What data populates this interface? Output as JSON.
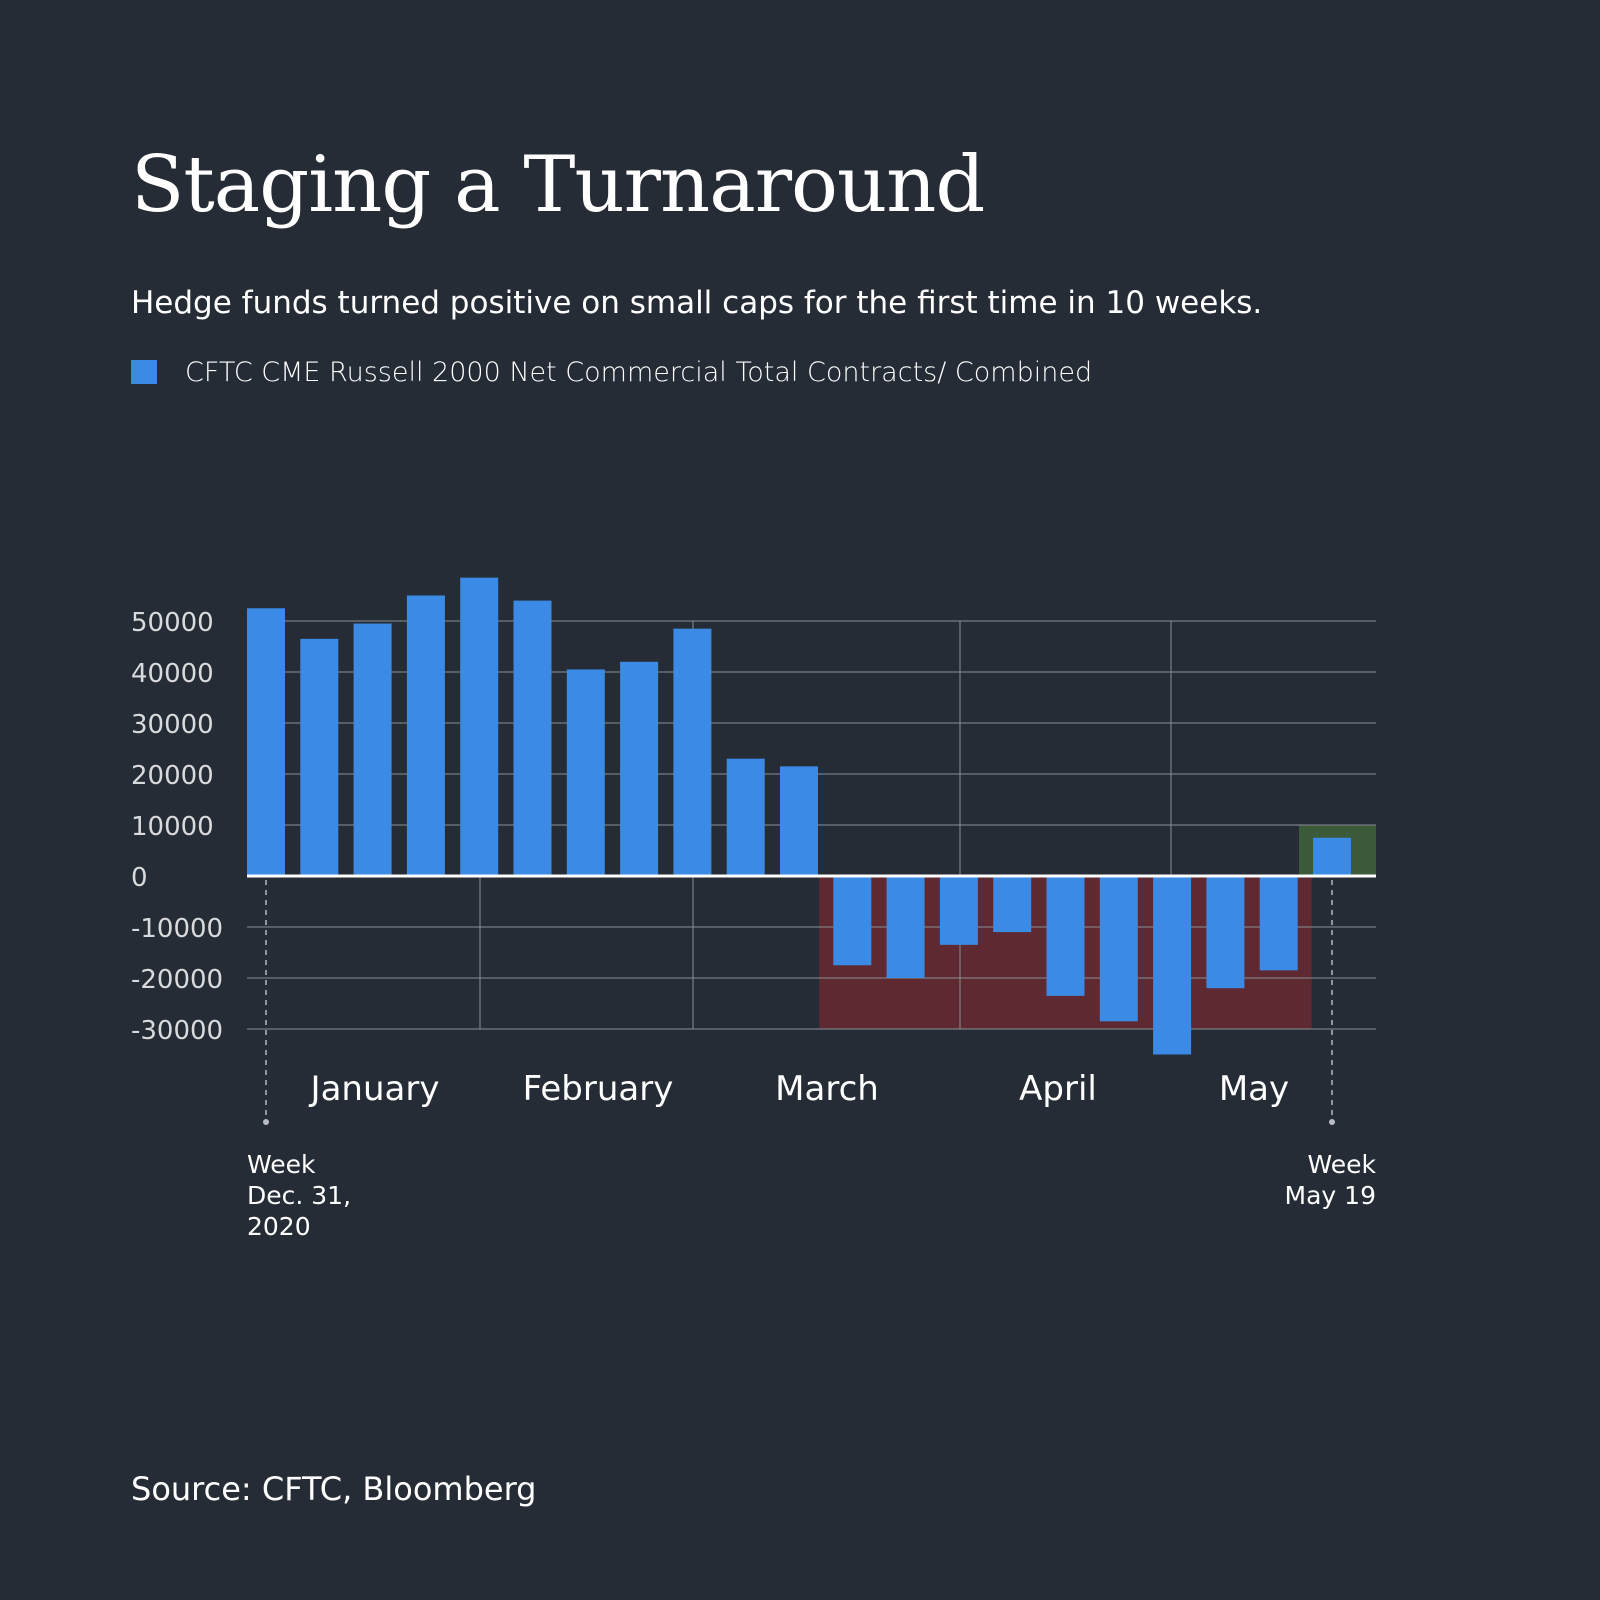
{
  "title": "Staging a Turnaround",
  "subtitle": "Hedge funds turned positive on small caps for the first time in 10 weeks.",
  "legend": {
    "label": "CFTC CME Russell 2000 Net Commercial Total Contracts/ Combined",
    "color": "#3b8ae6"
  },
  "source": "Source: CFTC, Bloomberg",
  "colors": {
    "background": "#262c35",
    "bar": "#3b8ae6",
    "negative_region": "#5e2930",
    "positive_region": "#3b5a3a",
    "grid": "#8a8f96"
  },
  "chart_data": {
    "type": "bar",
    "series": [
      {
        "name": "CFTC CME Russell 2000 Net Commercial Total Contracts/ Combined",
        "values": [
          52500,
          46500,
          49500,
          55000,
          58500,
          54000,
          40500,
          42000,
          48500,
          23000,
          21500,
          -17500,
          -20000,
          -13500,
          -11000,
          -23500,
          -28500,
          -35000,
          -22000,
          -18500,
          7500
        ]
      }
    ],
    "y_ticks": [
      50000,
      40000,
      30000,
      20000,
      10000,
      0,
      -10000,
      -20000,
      -30000
    ],
    "y_tick_labels": [
      "50000",
      "40000",
      "30000",
      "20000",
      "10000",
      "0",
      "-10000",
      "-20000",
      "-30000"
    ],
    "ylim": [
      -35000,
      58500
    ],
    "months": [
      "January",
      "February",
      "March",
      "April",
      "May"
    ],
    "start_label": [
      "Week",
      "Dec. 31,",
      "2020"
    ],
    "end_label": [
      "Week",
      "May 19"
    ],
    "negative_region_weeks": [
      11,
      19
    ],
    "negative_region_floor": -30000,
    "positive_region_week": 20,
    "positive_region_top": 10000,
    "grid": true
  }
}
